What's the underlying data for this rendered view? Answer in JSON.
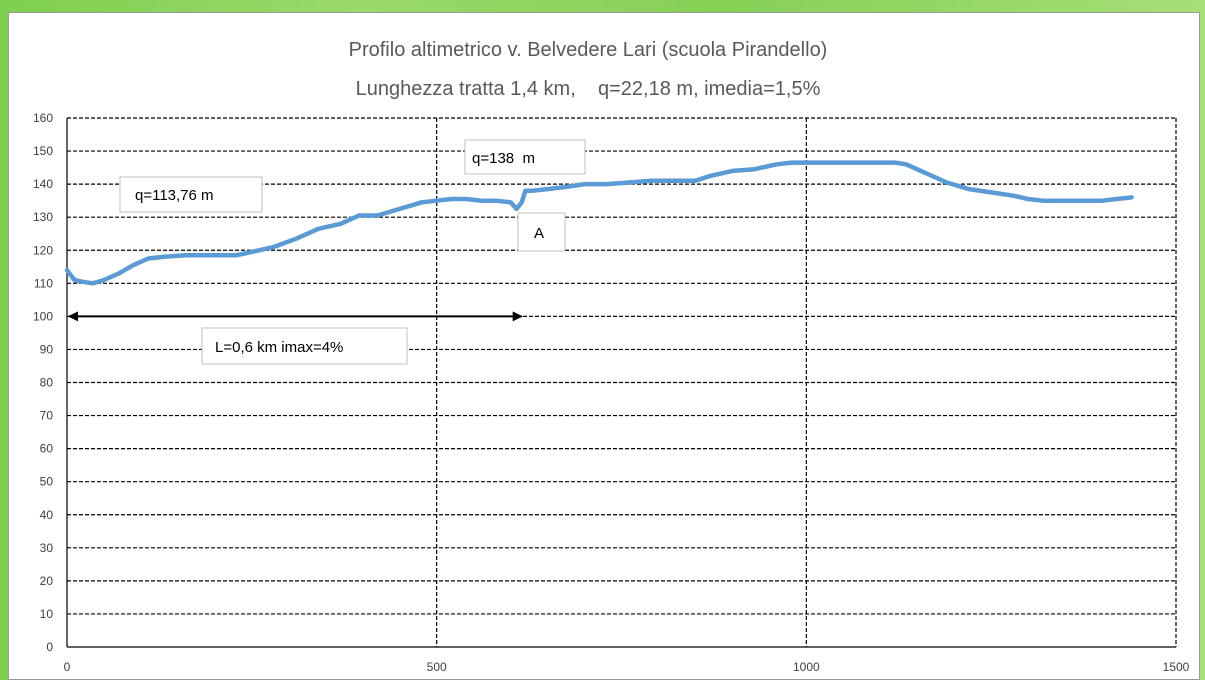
{
  "chart_data": {
    "type": "line",
    "title": "Profilo altimetrico v. Belvedere Lari (scuola Pirandello)",
    "subtitle": "Lunghezza tratta 1,4 km,    q=22,18 m, imedia=1,5%",
    "xlabel": "",
    "ylabel": "",
    "xlim": [
      0,
      1500
    ],
    "ylim": [
      0,
      160
    ],
    "x_ticks": [
      0,
      500,
      1000,
      1500
    ],
    "y_ticks": [
      0,
      10,
      20,
      30,
      40,
      50,
      60,
      70,
      80,
      90,
      100,
      110,
      120,
      130,
      140,
      150,
      160
    ],
    "grid": "dashed",
    "legend": "none",
    "series": [
      {
        "color": "#5b9bd5",
        "x": [
          0,
          10,
          20,
          35,
          50,
          70,
          90,
          110,
          130,
          160,
          200,
          230,
          250,
          280,
          310,
          340,
          370,
          395,
          420,
          450,
          480,
          500,
          520,
          540,
          560,
          580,
          600,
          608,
          615,
          620,
          630,
          650,
          670,
          700,
          730,
          760,
          790,
          820,
          850,
          870,
          900,
          930,
          950,
          960,
          980,
          1000,
          1040,
          1080,
          1120,
          1135,
          1160,
          1190,
          1220,
          1250,
          1280,
          1300,
          1320,
          1340,
          1360,
          1380,
          1400,
          1420,
          1440
        ],
        "y": [
          114,
          111,
          110.5,
          110,
          111,
          113,
          115.5,
          117.5,
          118,
          118.5,
          118.5,
          118.5,
          119.5,
          121,
          123.5,
          126.5,
          128,
          130.5,
          130.5,
          132.5,
          134.5,
          135,
          135.5,
          135.5,
          135,
          135,
          134.5,
          132.5,
          134.5,
          138,
          138,
          138.5,
          139,
          140,
          140,
          140.5,
          141,
          141,
          141,
          142.5,
          144,
          144.5,
          145.5,
          146,
          146.5,
          146.5,
          146.5,
          146.5,
          146.5,
          146,
          143.5,
          140.5,
          138.5,
          137.5,
          136.5,
          135.5,
          135,
          135,
          135,
          135,
          135,
          135.5,
          136
        ]
      }
    ],
    "annotations": [
      {
        "text": "q=113,76 m"
      },
      {
        "text": "q=138  m"
      },
      {
        "text": "A"
      },
      {
        "text": "L=0,6 km imax=4%"
      }
    ],
    "arrow": {
      "x_start": 0,
      "x_end": 615,
      "y": 100
    }
  }
}
